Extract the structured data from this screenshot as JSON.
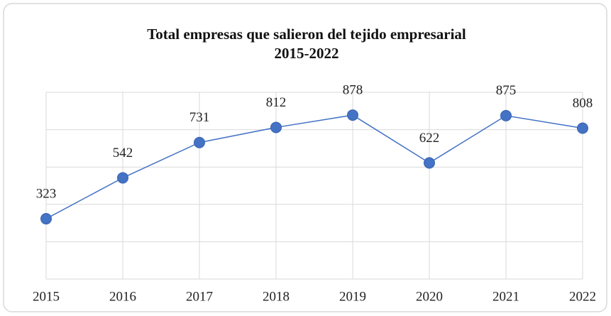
{
  "chart_data": {
    "type": "line",
    "title": [
      "Total empresas que salieron del tejido empresarial",
      "2015-2022"
    ],
    "categories": [
      "2015",
      "2016",
      "2017",
      "2018",
      "2019",
      "2020",
      "2021",
      "2022"
    ],
    "values": [
      323,
      542,
      731,
      812,
      878,
      622,
      875,
      808
    ],
    "color": "#4472c4",
    "ylim": [
      0,
      1000
    ],
    "yticks": [
      0,
      200,
      400,
      600,
      800,
      1000
    ],
    "grid": true
  }
}
